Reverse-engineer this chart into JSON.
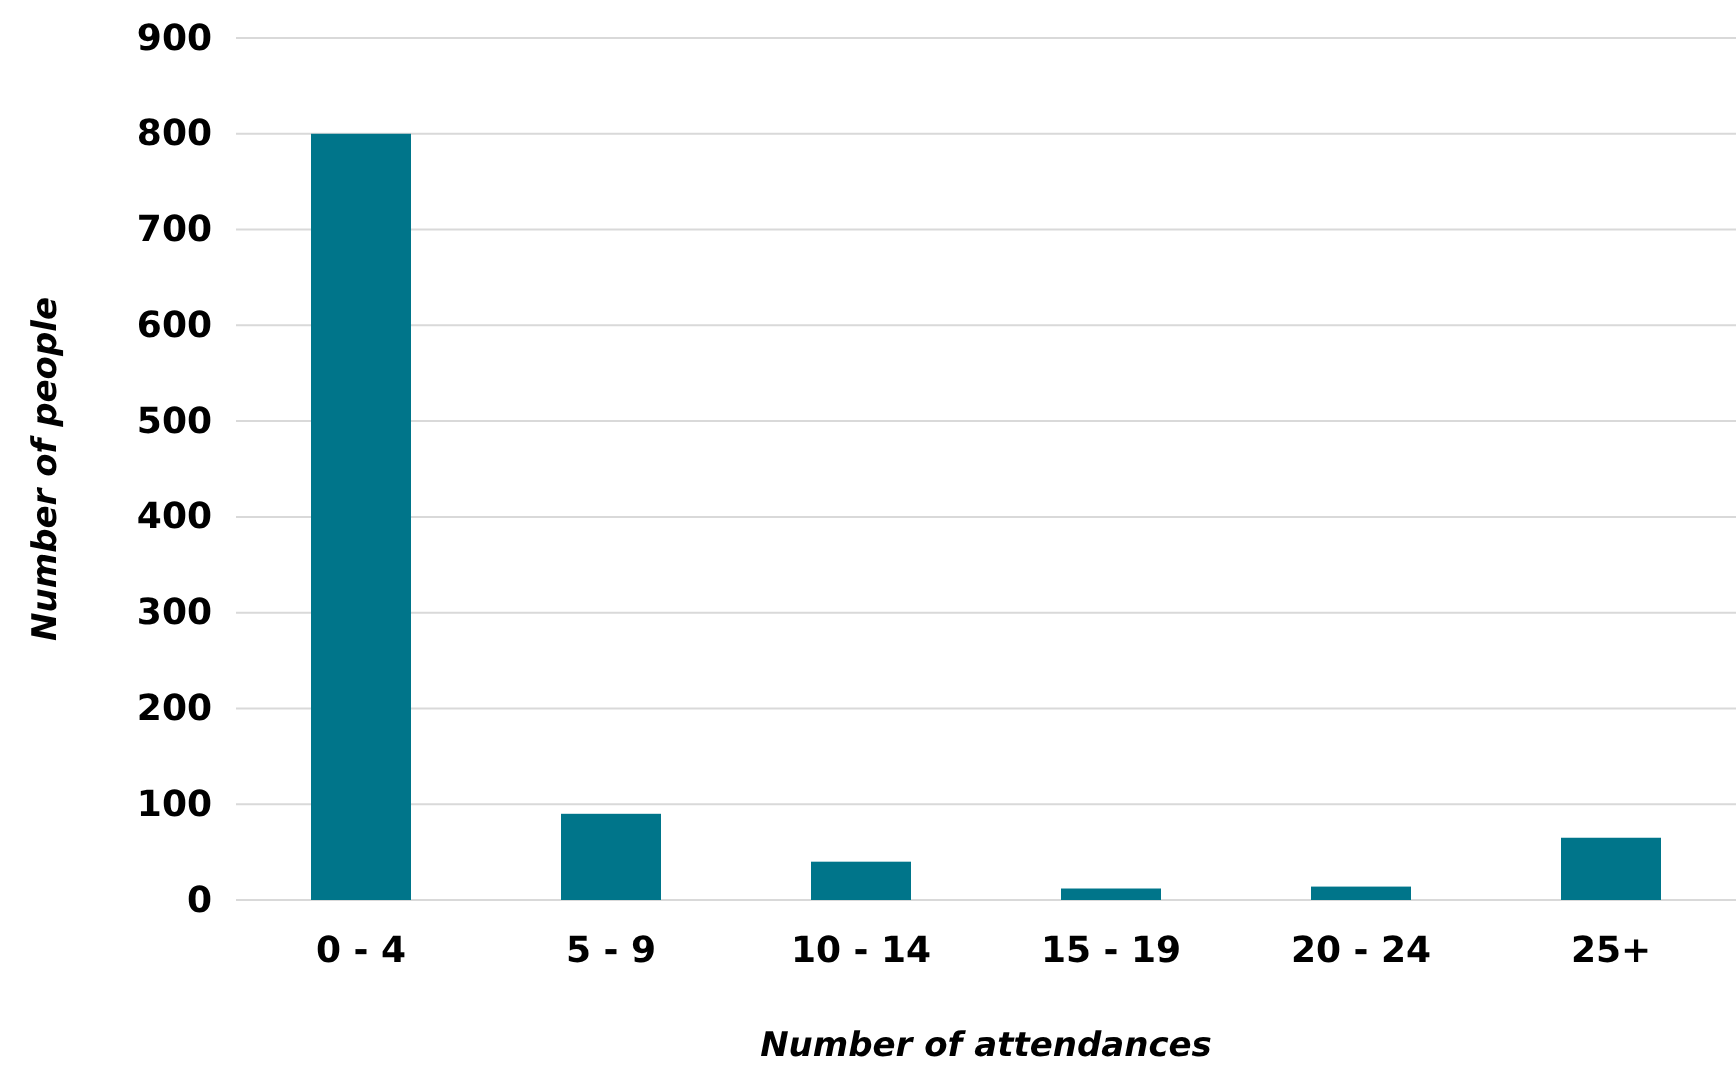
{
  "chart_data": {
    "type": "bar",
    "xlabel": "Number of attendances",
    "ylabel": "Number of people",
    "categories": [
      "0 - 4",
      "5 - 9",
      "10 - 14",
      "15 - 19",
      "20 - 24",
      "25+"
    ],
    "series": [
      {
        "color": "#00758a",
        "values": [
          800,
          90,
          40,
          12,
          14,
          65
        ]
      }
    ],
    "ylim": [
      0,
      900
    ],
    "yticks": [
      0,
      100,
      200,
      300,
      400,
      500,
      600,
      700,
      800,
      900
    ],
    "grid": "y"
  }
}
